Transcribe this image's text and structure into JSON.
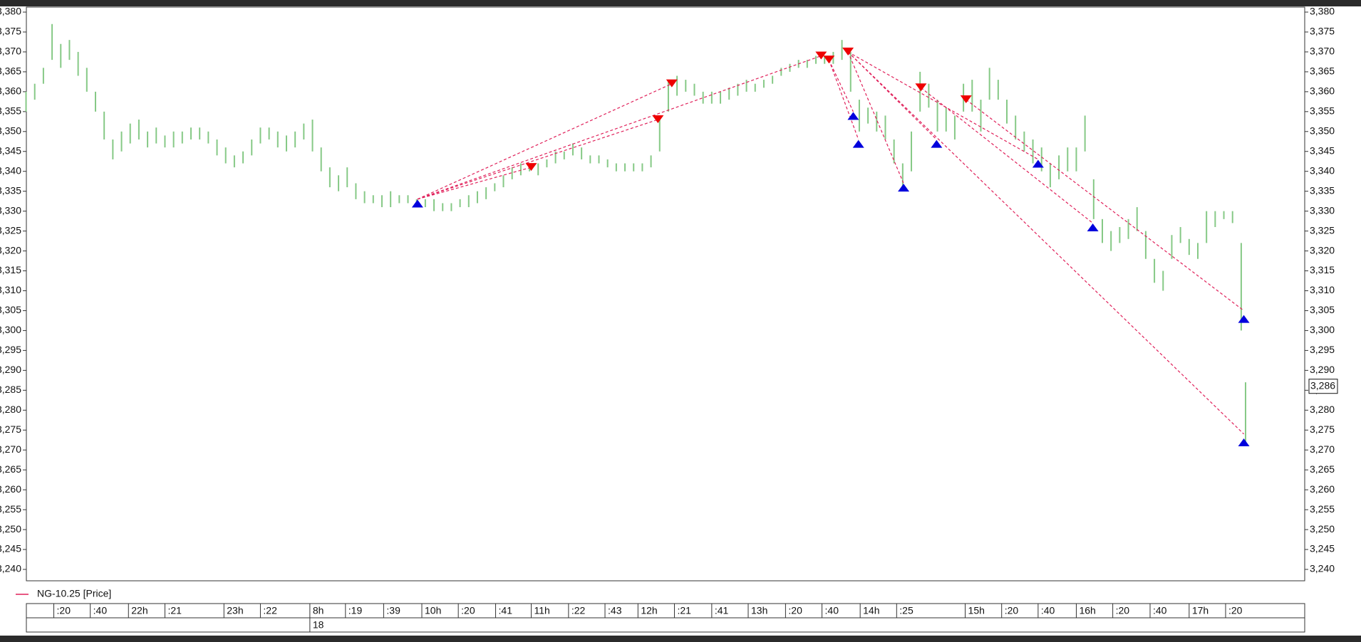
{
  "chart_data": {
    "type": "range-bar",
    "legend": "NG-10.25 [Price]",
    "legend_color": "#e0205a",
    "color": "#86c986",
    "buy_color": "#0000dd",
    "sell_color": "#ee0000",
    "line_color": "#e0205a",
    "xlim": [
      0,
      1473
    ],
    "ylim": [
      3.24,
      3.38
    ],
    "yticks": [
      {
        "value": 3.24,
        "label": "3,240"
      },
      {
        "value": 3.245,
        "label": "3,245"
      },
      {
        "value": 3.25,
        "label": "3,250"
      },
      {
        "value": 3.255,
        "label": "3,255"
      },
      {
        "value": 3.26,
        "label": "3,260"
      },
      {
        "value": 3.265,
        "label": "3,265"
      },
      {
        "value": 3.27,
        "label": "3,270"
      },
      {
        "value": 3.275,
        "label": "3,275"
      },
      {
        "value": 3.28,
        "label": "3,280"
      },
      {
        "value": 3.285,
        "label": "3,285"
      },
      {
        "value": 3.29,
        "label": "3,290"
      },
      {
        "value": 3.295,
        "label": "3,295"
      },
      {
        "value": 3.3,
        "label": "3,300"
      },
      {
        "value": 3.305,
        "label": "3,305"
      },
      {
        "value": 3.31,
        "label": "3,310"
      },
      {
        "value": 3.315,
        "label": "3,315"
      },
      {
        "value": 3.32,
        "label": "3,320"
      },
      {
        "value": 3.325,
        "label": "3,325"
      },
      {
        "value": 3.33,
        "label": "3,330"
      },
      {
        "value": 3.335,
        "label": "3,335"
      },
      {
        "value": 3.34,
        "label": "3,340"
      },
      {
        "value": 3.345,
        "label": "3,345"
      },
      {
        "value": 3.35,
        "label": "3,350"
      },
      {
        "value": 3.355,
        "label": "3,355"
      },
      {
        "value": 3.36,
        "label": "3,360"
      },
      {
        "value": 3.365,
        "label": "3,365"
      },
      {
        "value": 3.37,
        "label": "3,370"
      },
      {
        "value": 3.375,
        "label": "3,375"
      },
      {
        "value": 3.38,
        "label": "3,380"
      }
    ],
    "xticks": [
      {
        "value": 32,
        "label": ":20"
      },
      {
        "value": 74,
        "label": ":40"
      },
      {
        "value": 118,
        "label": "22h"
      },
      {
        "value": 160,
        "label": ":21"
      },
      {
        "value": 228,
        "label": "23h"
      },
      {
        "value": 270,
        "label": ":22"
      },
      {
        "value": 327,
        "label": "8h"
      },
      {
        "value": 368,
        "label": ":19"
      },
      {
        "value": 412,
        "label": ":39"
      },
      {
        "value": 456,
        "label": "10h"
      },
      {
        "value": 498,
        "label": ":20"
      },
      {
        "value": 541,
        "label": ":41"
      },
      {
        "value": 582,
        "label": "11h"
      },
      {
        "value": 625,
        "label": ":22"
      },
      {
        "value": 667,
        "label": ":43"
      },
      {
        "value": 705,
        "label": "12h"
      },
      {
        "value": 747,
        "label": ":21"
      },
      {
        "value": 790,
        "label": ":41"
      },
      {
        "value": 832,
        "label": "13h"
      },
      {
        "value": 875,
        "label": ":20"
      },
      {
        "value": 917,
        "label": ":40"
      },
      {
        "value": 961,
        "label": "14h"
      },
      {
        "value": 1003,
        "label": ":25"
      },
      {
        "value": 1082,
        "label": "15h"
      },
      {
        "value": 1124,
        "label": ":20"
      },
      {
        "value": 1166,
        "label": ":40"
      },
      {
        "value": 1210,
        "label": "16h"
      },
      {
        "value": 1252,
        "label": ":20"
      },
      {
        "value": 1295,
        "label": ":40"
      },
      {
        "value": 1340,
        "label": "17h"
      },
      {
        "value": 1382,
        "label": ":20"
      }
    ],
    "date_ticks": [
      {
        "value": 327,
        "label": "18"
      }
    ],
    "last_price": {
      "value": 3.286,
      "label": "3,286"
    },
    "x": [
      0,
      10,
      20,
      30,
      40,
      50,
      60,
      70,
      80,
      90,
      100,
      110,
      120,
      130,
      140,
      150,
      160,
      170,
      180,
      190,
      200,
      210,
      220,
      230,
      240,
      250,
      260,
      270,
      280,
      290,
      300,
      310,
      320,
      330,
      340,
      350,
      360,
      370,
      380,
      390,
      400,
      410,
      420,
      430,
      440,
      450,
      460,
      470,
      480,
      490,
      500,
      510,
      520,
      530,
      540,
      550,
      560,
      570,
      580,
      590,
      600,
      610,
      620,
      630,
      640,
      650,
      660,
      670,
      680,
      690,
      700,
      710,
      720,
      730,
      740,
      750,
      760,
      770,
      780,
      790,
      800,
      810,
      820,
      830,
      840,
      850,
      860,
      870,
      880,
      890,
      900,
      910,
      920,
      930,
      940,
      950,
      960,
      970,
      980,
      990,
      1000,
      1010,
      1020,
      1030,
      1040,
      1050,
      1060,
      1070,
      1080,
      1090,
      1100,
      1110,
      1120,
      1130,
      1140,
      1150,
      1160,
      1170,
      1180,
      1190,
      1200,
      1210,
      1220,
      1230,
      1240,
      1250,
      1260,
      1270,
      1280,
      1290,
      1300,
      1310,
      1320,
      1330,
      1340,
      1350,
      1360,
      1370,
      1380,
      1390,
      1400,
      1405
    ],
    "high": [
      3.36,
      3.362,
      3.366,
      3.377,
      3.372,
      3.373,
      3.37,
      3.366,
      3.36,
      3.355,
      3.348,
      3.35,
      3.352,
      3.353,
      3.35,
      3.351,
      3.349,
      3.35,
      3.35,
      3.351,
      3.351,
      3.35,
      3.348,
      3.346,
      3.344,
      3.345,
      3.348,
      3.351,
      3.351,
      3.35,
      3.349,
      3.35,
      3.352,
      3.353,
      3.346,
      3.341,
      3.339,
      3.341,
      3.337,
      3.335,
      3.334,
      3.334,
      3.335,
      3.334,
      3.334,
      3.333,
      3.333,
      3.333,
      3.332,
      3.332,
      3.333,
      3.334,
      3.335,
      3.336,
      3.337,
      3.339,
      3.341,
      3.342,
      3.342,
      3.342,
      3.343,
      3.345,
      3.345,
      3.347,
      3.346,
      3.344,
      3.344,
      3.343,
      3.342,
      3.342,
      3.342,
      3.342,
      3.344,
      3.354,
      3.363,
      3.364,
      3.363,
      3.362,
      3.36,
      3.36,
      3.36,
      3.361,
      3.362,
      3.363,
      3.362,
      3.363,
      3.364,
      3.366,
      3.367,
      3.368,
      3.368,
      3.369,
      3.369,
      3.37,
      3.373,
      3.37,
      3.358,
      3.356,
      3.355,
      3.354,
      3.348,
      3.342,
      3.35,
      3.365,
      3.362,
      3.358,
      3.356,
      3.354,
      3.362,
      3.363,
      3.358,
      3.366,
      3.363,
      3.358,
      3.354,
      3.35,
      3.348,
      3.346,
      3.342,
      3.344,
      3.346,
      3.346,
      3.354,
      3.338,
      3.328,
      3.325,
      3.326,
      3.328,
      3.331,
      3.325,
      3.318,
      3.315,
      3.324,
      3.326,
      3.323,
      3.322,
      3.33,
      3.33,
      3.33,
      3.33,
      3.322,
      3.287
    ],
    "low": [
      3.355,
      3.358,
      3.362,
      3.368,
      3.366,
      3.368,
      3.364,
      3.36,
      3.355,
      3.348,
      3.343,
      3.345,
      3.347,
      3.348,
      3.346,
      3.347,
      3.346,
      3.346,
      3.347,
      3.348,
      3.348,
      3.347,
      3.344,
      3.342,
      3.341,
      3.342,
      3.344,
      3.347,
      3.348,
      3.346,
      3.345,
      3.346,
      3.348,
      3.345,
      3.34,
      3.336,
      3.335,
      3.336,
      3.333,
      3.332,
      3.332,
      3.331,
      3.331,
      3.332,
      3.332,
      3.331,
      3.331,
      3.33,
      3.33,
      3.33,
      3.331,
      3.331,
      3.332,
      3.333,
      3.335,
      3.336,
      3.338,
      3.339,
      3.34,
      3.339,
      3.341,
      3.342,
      3.343,
      3.344,
      3.343,
      3.342,
      3.342,
      3.341,
      3.34,
      3.34,
      3.34,
      3.34,
      3.341,
      3.345,
      3.355,
      3.359,
      3.36,
      3.359,
      3.357,
      3.357,
      3.357,
      3.358,
      3.359,
      3.36,
      3.36,
      3.361,
      3.362,
      3.364,
      3.365,
      3.366,
      3.366,
      3.367,
      3.367,
      3.367,
      3.368,
      3.36,
      3.35,
      3.352,
      3.35,
      3.348,
      3.342,
      3.335,
      3.34,
      3.355,
      3.356,
      3.35,
      3.35,
      3.348,
      3.355,
      3.355,
      3.35,
      3.358,
      3.358,
      3.352,
      3.348,
      3.345,
      3.342,
      3.34,
      3.336,
      3.338,
      3.34,
      3.34,
      3.345,
      3.328,
      3.322,
      3.32,
      3.322,
      3.323,
      3.325,
      3.318,
      3.312,
      3.31,
      3.318,
      3.322,
      3.319,
      3.318,
      3.322,
      3.326,
      3.328,
      3.327,
      3.3,
      3.272
    ],
    "buys": {
      "x": [
        451,
        953,
        959,
        1011,
        1049,
        1166,
        1229,
        1403,
        1403
      ],
      "values": [
        3.332,
        3.354,
        3.347,
        3.336,
        3.347,
        3.342,
        3.326,
        3.303,
        3.272
      ]
    },
    "sells": {
      "x": [
        582,
        728,
        744,
        916,
        925,
        947,
        1031,
        1083
      ],
      "values": [
        3.341,
        3.353,
        3.362,
        3.369,
        3.368,
        3.37,
        3.361,
        3.358
      ]
    },
    "trade_lines": [
      {
        "x": [
          451,
          582
        ],
        "values": [
          3.333,
          3.341
        ]
      },
      {
        "x": [
          451,
          728
        ],
        "values": [
          3.333,
          3.353
        ]
      },
      {
        "x": [
          451,
          744
        ],
        "values": [
          3.333,
          3.362
        ]
      },
      {
        "x": [
          451,
          916
        ],
        "values": [
          3.333,
          3.369
        ]
      },
      {
        "x": [
          925,
          953
        ],
        "values": [
          3.368,
          3.355
        ]
      },
      {
        "x": [
          925,
          959
        ],
        "values": [
          3.368,
          3.348
        ]
      },
      {
        "x": [
          947,
          1011
        ],
        "values": [
          3.37,
          3.337
        ]
      },
      {
        "x": [
          947,
          1049
        ],
        "values": [
          3.37,
          3.348
        ]
      },
      {
        "x": [
          947,
          1166
        ],
        "values": [
          3.37,
          3.343
        ]
      },
      {
        "x": [
          947,
          1403
        ],
        "values": [
          3.37,
          3.274
        ]
      },
      {
        "x": [
          1031,
          1229
        ],
        "values": [
          3.361,
          3.327
        ]
      },
      {
        "x": [
          1083,
          1403
        ],
        "values": [
          3.358,
          3.305
        ]
      }
    ]
  }
}
